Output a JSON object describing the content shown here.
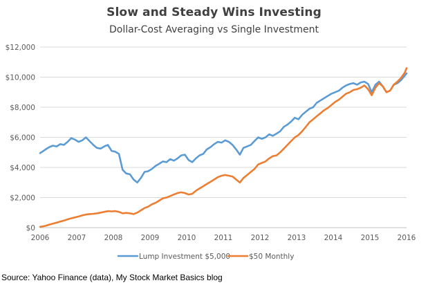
{
  "title": "Slow and Steady Wins Investing",
  "subtitle": "Dollar-Cost Averaging vs Single Investment",
  "source_note": "Source: Yahoo Finance (data), My Stock Market Basics blog",
  "chart_data": {
    "type": "line",
    "title": "Slow and Steady Wins Investing",
    "subtitle": "Dollar-Cost Averaging vs Single Investment",
    "xlabel": "",
    "ylabel": "",
    "xlim": [
      2006,
      2016
    ],
    "ylim": [
      0,
      12000
    ],
    "x_ticks": [
      2006,
      2007,
      2008,
      2009,
      2010,
      2011,
      2012,
      2013,
      2014,
      2015,
      2016
    ],
    "y_ticks": [
      0,
      2000,
      4000,
      6000,
      8000,
      10000,
      12000
    ],
    "y_tick_labels": [
      "$0",
      "$2,000",
      "$4,000",
      "$6,000",
      "$8,000",
      "$10,000",
      "$12,000"
    ],
    "grid": "horizontal",
    "legend": "bottom",
    "series": [
      {
        "name": "Lump Investment $5,000",
        "color": "#5b9bd5",
        "x": [
          2006.0,
          2006.15,
          2006.25,
          2006.35,
          2006.45,
          2006.55,
          2006.65,
          2006.75,
          2006.85,
          2006.95,
          2007.05,
          2007.15,
          2007.25,
          2007.35,
          2007.45,
          2007.55,
          2007.65,
          2007.75,
          2007.85,
          2007.95,
          2008.05,
          2008.15,
          2008.25,
          2008.35,
          2008.45,
          2008.55,
          2008.65,
          2008.75,
          2008.85,
          2008.95,
          2009.05,
          2009.15,
          2009.25,
          2009.35,
          2009.45,
          2009.55,
          2009.65,
          2009.75,
          2009.85,
          2009.95,
          2010.05,
          2010.15,
          2010.25,
          2010.35,
          2010.45,
          2010.55,
          2010.65,
          2010.75,
          2010.85,
          2010.95,
          2011.05,
          2011.15,
          2011.25,
          2011.35,
          2011.45,
          2011.55,
          2011.65,
          2011.75,
          2011.85,
          2011.95,
          2012.05,
          2012.15,
          2012.25,
          2012.35,
          2012.45,
          2012.55,
          2012.65,
          2012.75,
          2012.85,
          2012.95,
          2013.05,
          2013.15,
          2013.25,
          2013.35,
          2013.45,
          2013.55,
          2013.65,
          2013.75,
          2013.85,
          2013.95,
          2014.05,
          2014.15,
          2014.25,
          2014.35,
          2014.45,
          2014.55,
          2014.65,
          2014.75,
          2014.85,
          2014.95,
          2015.05,
          2015.15,
          2015.25,
          2015.35,
          2015.45,
          2015.55,
          2015.65,
          2015.75,
          2015.85,
          2015.95,
          2016.0
        ],
        "values": [
          4950,
          5200,
          5350,
          5450,
          5400,
          5550,
          5500,
          5700,
          5950,
          5850,
          5700,
          5800,
          6000,
          5750,
          5500,
          5300,
          5250,
          5400,
          5500,
          5100,
          5050,
          4900,
          3850,
          3600,
          3550,
          3200,
          3000,
          3300,
          3700,
          3750,
          3900,
          4100,
          4250,
          4400,
          4350,
          4550,
          4450,
          4600,
          4800,
          4850,
          4500,
          4350,
          4600,
          4800,
          4900,
          5200,
          5350,
          5550,
          5700,
          5650,
          5800,
          5700,
          5500,
          5200,
          4850,
          5300,
          5400,
          5500,
          5750,
          6000,
          5900,
          6000,
          6200,
          6100,
          6250,
          6400,
          6700,
          6850,
          7050,
          7300,
          7200,
          7500,
          7700,
          7900,
          8000,
          8300,
          8450,
          8600,
          8750,
          8900,
          9000,
          9100,
          9300,
          9450,
          9550,
          9600,
          9500,
          9650,
          9700,
          9550,
          9000,
          9500,
          9700,
          9400,
          9000,
          9100,
          9500,
          9600,
          9800,
          10100,
          10250
        ]
      },
      {
        "name": "$50 Monthly",
        "color": "#ed7d31",
        "x": [
          2006.0,
          2006.15,
          2006.25,
          2006.35,
          2006.45,
          2006.55,
          2006.65,
          2006.75,
          2006.85,
          2006.95,
          2007.05,
          2007.15,
          2007.25,
          2007.35,
          2007.45,
          2007.55,
          2007.65,
          2007.75,
          2007.85,
          2007.95,
          2008.05,
          2008.15,
          2008.25,
          2008.35,
          2008.45,
          2008.55,
          2008.65,
          2008.75,
          2008.85,
          2008.95,
          2009.05,
          2009.15,
          2009.25,
          2009.35,
          2009.45,
          2009.55,
          2009.65,
          2009.75,
          2009.85,
          2009.95,
          2010.05,
          2010.15,
          2010.25,
          2010.35,
          2010.45,
          2010.55,
          2010.65,
          2010.75,
          2010.85,
          2010.95,
          2011.05,
          2011.15,
          2011.25,
          2011.35,
          2011.45,
          2011.55,
          2011.65,
          2011.75,
          2011.85,
          2011.95,
          2012.05,
          2012.15,
          2012.25,
          2012.35,
          2012.45,
          2012.55,
          2012.65,
          2012.75,
          2012.85,
          2012.95,
          2013.05,
          2013.15,
          2013.25,
          2013.35,
          2013.45,
          2013.55,
          2013.65,
          2013.75,
          2013.85,
          2013.95,
          2014.05,
          2014.15,
          2014.25,
          2014.35,
          2014.45,
          2014.55,
          2014.65,
          2014.75,
          2014.85,
          2014.95,
          2015.05,
          2015.15,
          2015.25,
          2015.35,
          2015.45,
          2015.55,
          2015.65,
          2015.75,
          2015.85,
          2015.95,
          2016.0
        ],
        "values": [
          50,
          120,
          200,
          260,
          330,
          400,
          470,
          550,
          620,
          680,
          740,
          820,
          870,
          900,
          920,
          950,
          1000,
          1050,
          1100,
          1080,
          1100,
          1050,
          950,
          980,
          950,
          900,
          1000,
          1150,
          1300,
          1400,
          1550,
          1650,
          1800,
          1950,
          2000,
          2100,
          2200,
          2300,
          2350,
          2300,
          2200,
          2250,
          2450,
          2600,
          2750,
          2900,
          3050,
          3200,
          3350,
          3450,
          3500,
          3450,
          3400,
          3200,
          3000,
          3300,
          3500,
          3700,
          3900,
          4200,
          4300,
          4400,
          4600,
          4750,
          4800,
          5000,
          5250,
          5500,
          5750,
          6000,
          6150,
          6400,
          6700,
          7000,
          7200,
          7400,
          7600,
          7800,
          7950,
          8150,
          8350,
          8500,
          8700,
          8900,
          9000,
          9150,
          9200,
          9300,
          9450,
          9200,
          8800,
          9300,
          9600,
          9400,
          9000,
          9100,
          9500,
          9700,
          9950,
          10300,
          10600
        ]
      }
    ]
  }
}
